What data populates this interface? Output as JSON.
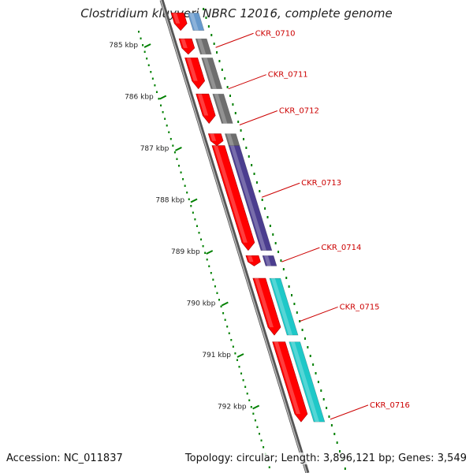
{
  "title": "Clostridium kluyveri NBRC 12016, complete genome",
  "footer": {
    "accession": "Accession: NC_011837",
    "summary": "Topology: circular; Length: 3,896,121 bp; Genes: 3,549"
  },
  "colors": {
    "backbone": "#7a7a7a",
    "forward_gene": "#ff0000",
    "tick": "#008000",
    "label": "#cc0000",
    "grey_feature": "#6e6e6e",
    "purple_feature": "#4b3d8f",
    "cyan_feature": "#1ec8c8",
    "blue_feature": "#4f7fb0"
  },
  "ruler": [
    {
      "kbp": 785,
      "label": "785 kbp"
    },
    {
      "kbp": 786,
      "label": "786 kbp"
    },
    {
      "kbp": 787,
      "label": "787 kbp"
    },
    {
      "kbp": 788,
      "label": "788 kbp"
    },
    {
      "kbp": 789,
      "label": "789 kbp"
    },
    {
      "kbp": 790,
      "label": "790 kbp"
    },
    {
      "kbp": 791,
      "label": "791 kbp"
    },
    {
      "kbp": 792,
      "label": "792 kbp"
    }
  ],
  "genes": [
    {
      "name": "",
      "start_kbp": 784.38,
      "end_kbp": 784.72,
      "color": "#ff0000",
      "pair": "#6699cc"
    },
    {
      "name": "CKR_0710",
      "start_kbp": 784.88,
      "end_kbp": 785.18,
      "color": "#ff0000",
      "pair": "#6e6e6e"
    },
    {
      "name": "CKR_0711",
      "start_kbp": 785.25,
      "end_kbp": 785.85,
      "color": "#ff0000",
      "pair": "#6e6e6e"
    },
    {
      "name": "CKR_0712",
      "start_kbp": 785.95,
      "end_kbp": 786.52,
      "color": "#ff0000",
      "pair": "#6e6e6e"
    },
    {
      "name": "CKR_0713",
      "start_kbp": 786.72,
      "end_kbp": 786.95,
      "color": "#ff0000",
      "pair": "#6e6e6e"
    },
    {
      "name": "",
      "start_kbp": 786.95,
      "end_kbp": 788.98,
      "color": "#ff0000",
      "pair": "#4b3d8f"
    },
    {
      "name": "CKR_0714",
      "start_kbp": 789.08,
      "end_kbp": 789.28,
      "color": "#ff0000",
      "pair": "#4b3d8f"
    },
    {
      "name": "CKR_0715",
      "start_kbp": 789.52,
      "end_kbp": 790.62,
      "color": "#ff0000",
      "pair": "#1ec8c8"
    },
    {
      "name": "CKR_0716",
      "start_kbp": 790.75,
      "end_kbp": 792.3,
      "color": "#ff0000",
      "pair": "#1ec8c8"
    }
  ],
  "labels": [
    {
      "text": "CKR_0710",
      "at_kbp": 785.05
    },
    {
      "text": "CKR_0711",
      "at_kbp": 785.85
    },
    {
      "text": "CKR_0712",
      "at_kbp": 786.55
    },
    {
      "text": "CKR_0713",
      "at_kbp": 787.95
    },
    {
      "text": "CKR_0714",
      "at_kbp": 789.2
    },
    {
      "text": "CKR_0715",
      "at_kbp": 790.35
    },
    {
      "text": "CKR_0716",
      "at_kbp": 792.25
    }
  ]
}
